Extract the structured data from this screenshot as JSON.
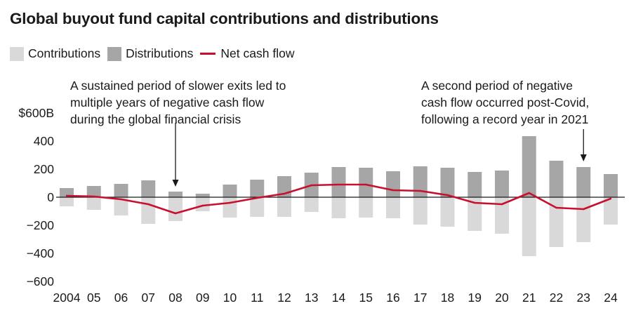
{
  "chart_data": {
    "type": "bar",
    "title": "Global buyout fund capital contributions and distributions",
    "categories": [
      "2004",
      "05",
      "06",
      "07",
      "08",
      "09",
      "10",
      "11",
      "12",
      "13",
      "14",
      "15",
      "16",
      "17",
      "18",
      "19",
      "20",
      "21",
      "22",
      "23",
      "24"
    ],
    "series": [
      {
        "name": "Contributions",
        "type": "bar",
        "color": "#d9d9d9",
        "values": [
          -65,
          -90,
          -130,
          -190,
          -170,
          -100,
          -145,
          -140,
          -140,
          -105,
          -150,
          -145,
          -150,
          -195,
          -210,
          -240,
          -260,
          -420,
          -355,
          -320,
          -195
        ]
      },
      {
        "name": "Distributions",
        "type": "bar",
        "color": "#a6a6a6",
        "values": [
          65,
          80,
          95,
          120,
          40,
          25,
          90,
          125,
          150,
          175,
          215,
          210,
          185,
          220,
          210,
          180,
          190,
          435,
          260,
          215,
          165
        ]
      },
      {
        "name": "Net cash flow",
        "type": "line",
        "color": "#c8102e",
        "values": [
          10,
          5,
          -15,
          -50,
          -115,
          -60,
          -40,
          -5,
          25,
          85,
          90,
          90,
          50,
          45,
          15,
          -40,
          -50,
          30,
          -75,
          -85,
          -10
        ]
      }
    ],
    "y_tick_labels": [
      "$600B",
      "400",
      "200",
      "0",
      "−200",
      "−400",
      "−600"
    ],
    "y_tick_values": [
      600,
      400,
      200,
      0,
      -200,
      -400,
      -600
    ],
    "ylim": [
      -600,
      600
    ],
    "grid": false,
    "legend_position": "top-left",
    "annotations": [
      {
        "lines": [
          "A sustained period of slower exits led to",
          "multiple years of negative cash flow",
          "during the global financial crisis"
        ],
        "category": "08"
      },
      {
        "lines": [
          "A second period of negative",
          "cash flow occurred post-Covid,",
          "following a record year in 2021"
        ],
        "category": "23"
      }
    ]
  },
  "legend": {
    "contributions": "Contributions",
    "distributions": "Distributions",
    "net": "Net cash flow"
  }
}
